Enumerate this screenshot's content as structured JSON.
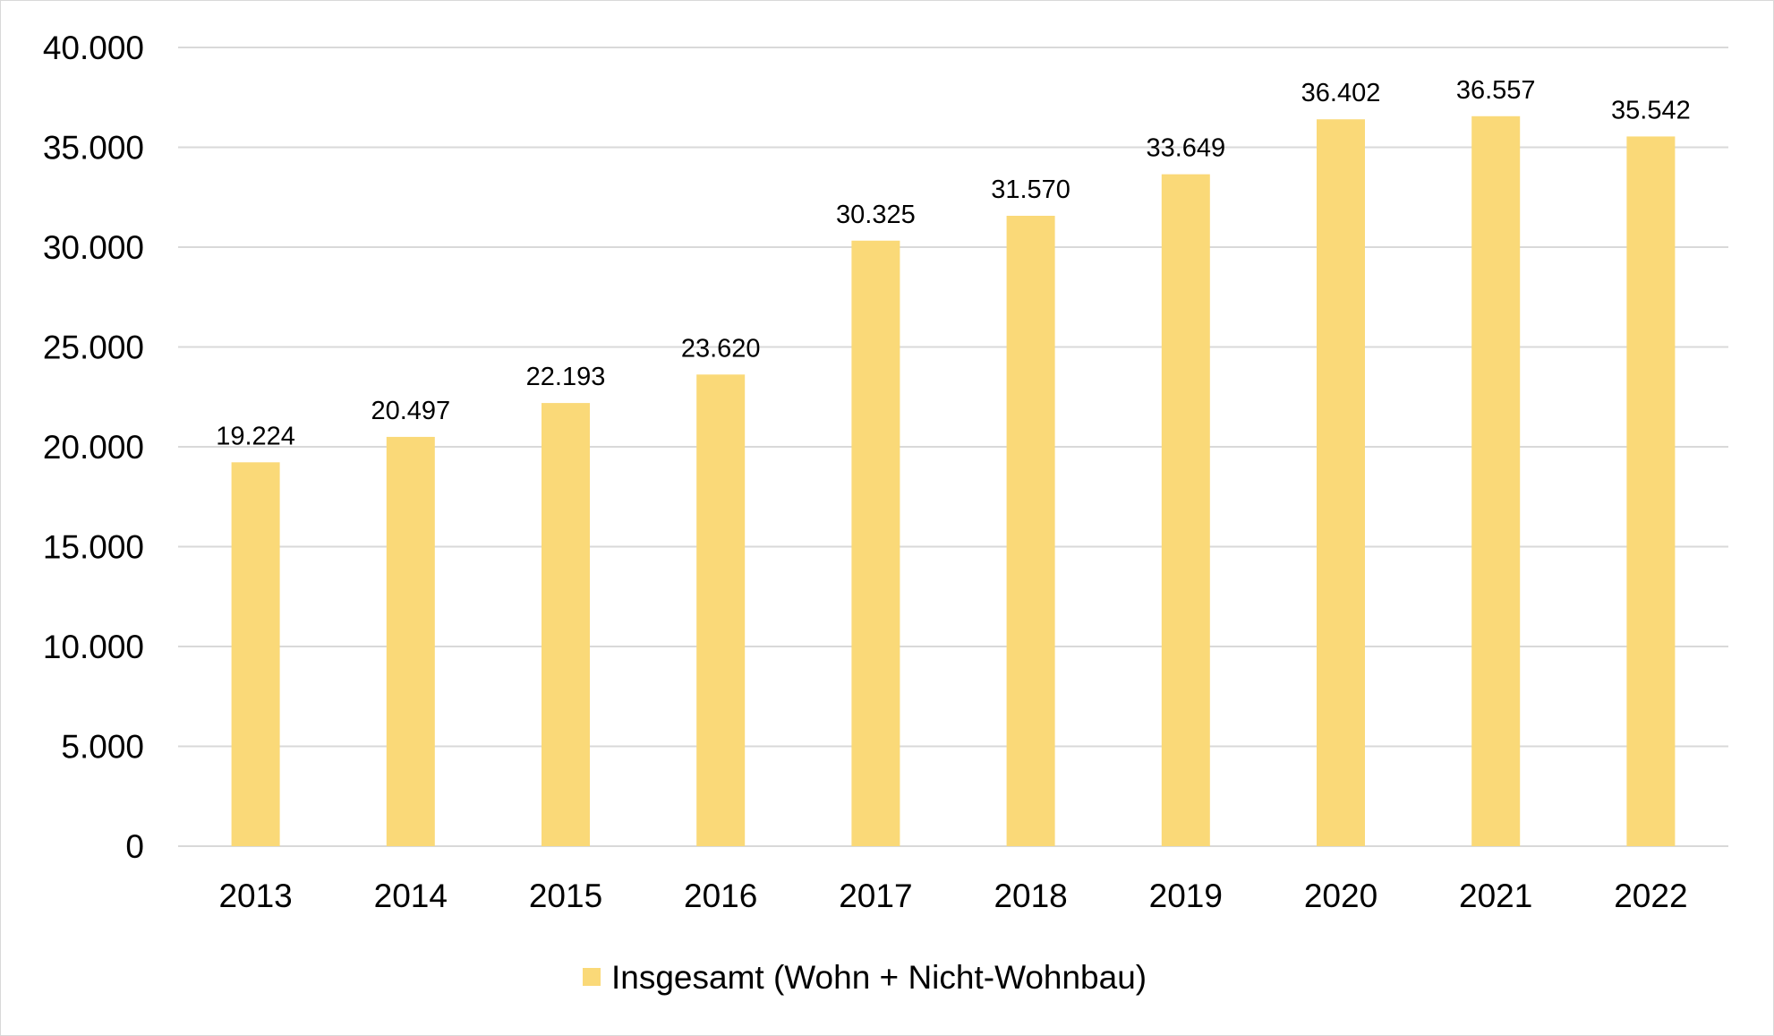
{
  "chart_data": {
    "type": "bar",
    "title": "",
    "xlabel": "",
    "ylabel": "",
    "categories": [
      "2013",
      "2014",
      "2015",
      "2016",
      "2017",
      "2018",
      "2019",
      "2020",
      "2021",
      "2022"
    ],
    "series": [
      {
        "name": "Insgesamt (Wohn + Nicht-Wohnbau)",
        "values": [
          19224,
          20497,
          22193,
          23620,
          30325,
          31570,
          33649,
          36402,
          36557,
          35542
        ],
        "value_labels": [
          "19.224",
          "20.497",
          "22.193",
          "23.620",
          "30.325",
          "31.570",
          "33.649",
          "36.402",
          "36.557",
          "35.542"
        ],
        "color": "#fad978"
      }
    ],
    "ylim": [
      0,
      40000
    ],
    "yticks": [
      0,
      5000,
      10000,
      15000,
      20000,
      25000,
      30000,
      35000,
      40000
    ],
    "ytick_labels": [
      "0",
      "5.000",
      "10.000",
      "15.000",
      "20.000",
      "25.000",
      "30.000",
      "35.000",
      "40.000"
    ],
    "grid": true,
    "gridline_color": "#d9d9d9",
    "legend_position": "bottom"
  }
}
